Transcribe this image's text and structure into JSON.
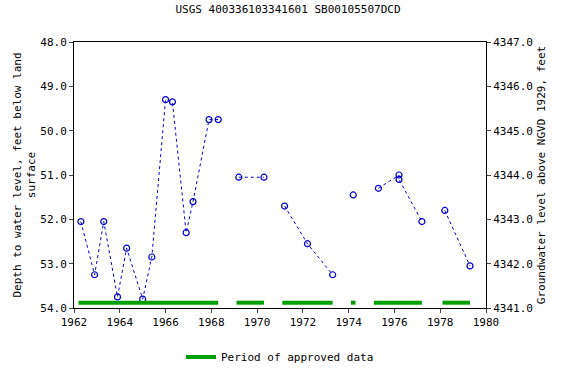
{
  "chart_data": {
    "type": "scatter",
    "title": "USGS 400336103341601 SB00105507DCD",
    "x_label": null,
    "y_label": "Depth to water level, feet below land\nsurface",
    "y2_label": "Groundwater level above NGVD 1929, feet",
    "x": [
      1962.3,
      1962.9,
      1963.3,
      1963.9,
      1964.3,
      1965.0,
      1965.4,
      1966.0,
      1966.3,
      1966.9,
      1967.2,
      1967.9,
      1968.3,
      null,
      1969.2,
      1970.3,
      null,
      1971.2,
      1972.2,
      1973.3,
      null,
      1974.2,
      null,
      1975.3,
      1976.2,
      1976.2,
      1977.2,
      null,
      1978.2,
      1979.3
    ],
    "series": [
      {
        "color": "#0000cc",
        "marker": "circle-open",
        "line_style": "dot",
        "values": [
          52.05,
          53.25,
          52.05,
          53.75,
          52.65,
          53.8,
          52.85,
          49.3,
          49.35,
          52.3,
          51.6,
          49.75,
          49.75,
          null,
          51.05,
          51.05,
          null,
          51.7,
          52.55,
          53.25,
          null,
          51.45,
          null,
          51.3,
          51.0,
          51.1,
          52.05,
          null,
          51.8,
          53.05
        ]
      }
    ],
    "approved_periods": {
      "name": "Period of approved data",
      "color": "#00a000",
      "ranges": [
        [
          1962.2,
          1968.3
        ],
        [
          1969.1,
          1970.3
        ],
        [
          1971.1,
          1973.3
        ],
        [
          1974.1,
          1974.3
        ],
        [
          1975.1,
          1977.2
        ],
        [
          1978.1,
          1979.3
        ]
      ]
    },
    "legend": "bottom",
    "grid": false,
    "xlim": [
      1962,
      1980
    ],
    "xticks": [
      1962,
      1964,
      1966,
      1968,
      1970,
      1972,
      1974,
      1976,
      1978,
      1980
    ],
    "ylim": [
      54,
      48
    ],
    "yticks": [
      {
        "value": 48,
        "label": "48.0"
      },
      {
        "value": 49,
        "label": "49.0"
      },
      {
        "value": 50,
        "label": "50.0"
      },
      {
        "value": 51,
        "label": "51.0"
      },
      {
        "value": 52,
        "label": "52.0"
      },
      {
        "value": 53,
        "label": "53.0"
      },
      {
        "value": 54,
        "label": "54.0"
      }
    ],
    "y2lim": [
      4341,
      4347
    ],
    "y2ticks": [
      {
        "value": 4341,
        "label": "4341.0"
      },
      {
        "value": 4342,
        "label": "4342.0"
      },
      {
        "value": 4343,
        "label": "4343.0"
      },
      {
        "value": 4344,
        "label": "4344.0"
      },
      {
        "value": 4345,
        "label": "4345.0"
      },
      {
        "value": 4346,
        "label": "4346.0"
      },
      {
        "value": 4347,
        "label": "4347.0"
      }
    ]
  }
}
